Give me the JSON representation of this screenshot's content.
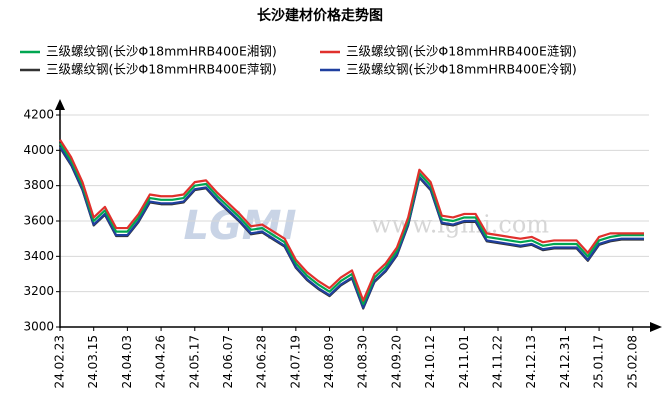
{
  "chart_data": {
    "type": "line",
    "title": "长沙建材价格走势图",
    "watermark_logo": "LGMI",
    "watermark": "www.lgmi.com",
    "categories": [
      "24.02.23",
      null,
      null,
      "24.03.15",
      null,
      null,
      "24.04.03",
      null,
      null,
      "24.04.26",
      null,
      null,
      "24.05.17",
      null,
      null,
      "24.06.07",
      null,
      null,
      "24.06.28",
      null,
      null,
      "24.07.19",
      null,
      null,
      "24.08.09",
      null,
      null,
      "24.08.30",
      null,
      null,
      "24.09.20",
      null,
      null,
      "24.10.12",
      null,
      null,
      "24.11.01",
      null,
      null,
      "24.11.22",
      null,
      null,
      "24.12.13",
      null,
      null,
      "24.12.31",
      null,
      null,
      "25.01.17",
      null,
      null,
      "25.02.08",
      null
    ],
    "series": [
      {
        "name": "三级螺纹钢(长沙Φ18mmHRB400E湘钢)",
        "color": "#00a651",
        "values": [
          4040,
          3940,
          3800,
          3600,
          3660,
          3540,
          3540,
          3620,
          3730,
          3720,
          3720,
          3730,
          3800,
          3810,
          3740,
          3680,
          3620,
          3550,
          3560,
          3520,
          3480,
          3360,
          3290,
          3240,
          3200,
          3260,
          3300,
          3130,
          3280,
          3340,
          3430,
          3600,
          3870,
          3800,
          3610,
          3600,
          3620,
          3620,
          3510,
          3500,
          3490,
          3480,
          3490,
          3460,
          3470,
          3470,
          3470,
          3400,
          3490,
          3510,
          3520,
          3520,
          3520
        ]
      },
      {
        "name": "三级螺纹钢(长沙Φ18mmHRB400E涟钢)",
        "color": "#e0302c",
        "values": [
          4060,
          3960,
          3820,
          3620,
          3680,
          3560,
          3560,
          3640,
          3750,
          3740,
          3740,
          3750,
          3820,
          3830,
          3760,
          3700,
          3640,
          3570,
          3580,
          3540,
          3500,
          3380,
          3310,
          3260,
          3220,
          3280,
          3320,
          3150,
          3300,
          3360,
          3450,
          3620,
          3890,
          3820,
          3630,
          3620,
          3640,
          3640,
          3530,
          3520,
          3510,
          3500,
          3510,
          3480,
          3490,
          3490,
          3490,
          3420,
          3510,
          3530,
          3530,
          3530,
          3530
        ]
      },
      {
        "name": "三级螺纹钢(长沙Φ18mmHRB400E萍钢)",
        "color": "#333333",
        "values": [
          4015,
          3915,
          3775,
          3575,
          3635,
          3515,
          3515,
          3595,
          3705,
          3695,
          3695,
          3705,
          3775,
          3785,
          3715,
          3655,
          3595,
          3525,
          3535,
          3495,
          3455,
          3335,
          3265,
          3215,
          3175,
          3235,
          3275,
          3105,
          3255,
          3315,
          3405,
          3575,
          3845,
          3775,
          3585,
          3575,
          3595,
          3595,
          3485,
          3475,
          3465,
          3455,
          3465,
          3435,
          3445,
          3445,
          3445,
          3375,
          3465,
          3485,
          3495,
          3495,
          3495
        ]
      },
      {
        "name": "三级螺纹钢(长沙Φ18mmHRB400E冷钢)",
        "color": "#1f3f9f",
        "values": [
          4020,
          3920,
          3780,
          3580,
          3640,
          3520,
          3520,
          3600,
          3710,
          3700,
          3700,
          3710,
          3780,
          3790,
          3720,
          3660,
          3600,
          3530,
          3540,
          3500,
          3460,
          3340,
          3270,
          3220,
          3180,
          3240,
          3280,
          3110,
          3260,
          3320,
          3410,
          3580,
          3850,
          3780,
          3590,
          3580,
          3600,
          3600,
          3490,
          3480,
          3470,
          3460,
          3470,
          3440,
          3450,
          3450,
          3450,
          3380,
          3470,
          3490,
          3500,
          3500,
          3500
        ]
      }
    ],
    "ylim": [
      3000,
      4200
    ],
    "yticks": [
      3000,
      3200,
      3400,
      3600,
      3800,
      4000,
      4200
    ],
    "grid": true
  }
}
